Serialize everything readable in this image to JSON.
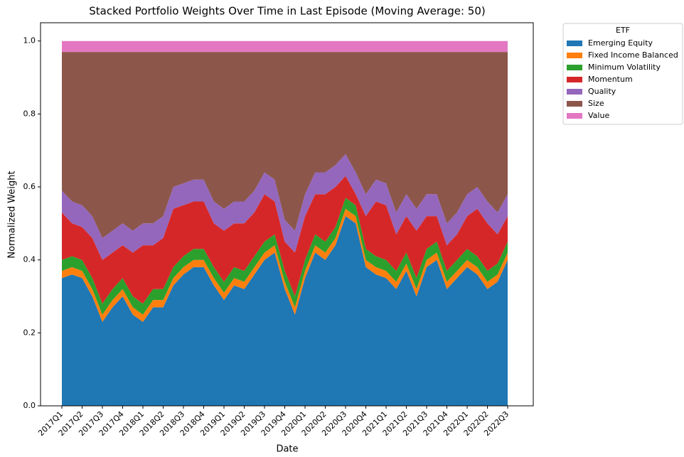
{
  "chart_data": {
    "type": "stacked_area",
    "title": "Stacked Portfolio Weights Over Time in Last Episode (Moving Average: 50)",
    "x_label": "Date",
    "y_label": "Normalized Weight",
    "categories": [
      "2017Q1",
      null,
      "2017Q2",
      null,
      "2017Q3",
      null,
      "2017Q4",
      null,
      "2018Q1",
      null,
      "2018Q2",
      null,
      "2018Q3",
      null,
      "2018Q4",
      null,
      "2019Q1",
      null,
      "2019Q2",
      null,
      "2019Q3",
      null,
      "2019Q4",
      null,
      "2020Q1",
      null,
      "2020Q2",
      null,
      "2020Q3",
      null,
      "2020Q4",
      null,
      "2021Q1",
      null,
      "2021Q2",
      null,
      "2021Q3",
      null,
      "2021Q4",
      null,
      "2022Q1",
      null,
      "2022Q2",
      null,
      "2022Q3"
    ],
    "series": [
      {
        "name": "Emerging Equity",
        "color": "#1f77b4",
        "values": [
          0.35,
          0.36,
          0.35,
          0.3,
          0.23,
          0.27,
          0.3,
          0.25,
          0.23,
          0.27,
          0.27,
          0.33,
          0.36,
          0.38,
          0.38,
          0.33,
          0.29,
          0.33,
          0.32,
          0.36,
          0.4,
          0.42,
          0.32,
          0.25,
          0.35,
          0.42,
          0.4,
          0.44,
          0.52,
          0.5,
          0.38,
          0.36,
          0.35,
          0.32,
          0.37,
          0.3,
          0.38,
          0.4,
          0.32,
          0.35,
          0.38,
          0.36,
          0.32,
          0.34,
          0.4
        ]
      },
      {
        "name": "Fixed Income Balanced",
        "color": "#ff7f0e",
        "values": [
          0.02,
          0.02,
          0.02,
          0.02,
          0.02,
          0.02,
          0.02,
          0.02,
          0.02,
          0.02,
          0.02,
          0.02,
          0.02,
          0.02,
          0.02,
          0.02,
          0.02,
          0.02,
          0.02,
          0.02,
          0.02,
          0.02,
          0.02,
          0.02,
          0.02,
          0.02,
          0.02,
          0.02,
          0.02,
          0.02,
          0.02,
          0.02,
          0.02,
          0.02,
          0.02,
          0.02,
          0.02,
          0.02,
          0.02,
          0.02,
          0.02,
          0.02,
          0.02,
          0.02,
          0.02
        ]
      },
      {
        "name": "Minimum Volatility",
        "color": "#2ca02c",
        "values": [
          0.03,
          0.03,
          0.03,
          0.03,
          0.03,
          0.03,
          0.03,
          0.03,
          0.03,
          0.03,
          0.03,
          0.03,
          0.03,
          0.03,
          0.03,
          0.03,
          0.03,
          0.03,
          0.03,
          0.03,
          0.03,
          0.03,
          0.03,
          0.03,
          0.03,
          0.03,
          0.03,
          0.03,
          0.03,
          0.03,
          0.03,
          0.03,
          0.03,
          0.03,
          0.03,
          0.03,
          0.03,
          0.03,
          0.03,
          0.03,
          0.03,
          0.03,
          0.03,
          0.03,
          0.03
        ]
      },
      {
        "name": "Momentum",
        "color": "#d62728",
        "values": [
          0.13,
          0.09,
          0.09,
          0.11,
          0.12,
          0.1,
          0.09,
          0.12,
          0.16,
          0.12,
          0.14,
          0.16,
          0.14,
          0.13,
          0.13,
          0.12,
          0.14,
          0.12,
          0.13,
          0.12,
          0.13,
          0.09,
          0.08,
          0.12,
          0.12,
          0.11,
          0.13,
          0.11,
          0.06,
          0.03,
          0.09,
          0.15,
          0.15,
          0.1,
          0.1,
          0.13,
          0.09,
          0.07,
          0.07,
          0.07,
          0.09,
          0.13,
          0.13,
          0.08,
          0.07
        ]
      },
      {
        "name": "Quality",
        "color": "#9467bd",
        "values": [
          0.06,
          0.06,
          0.06,
          0.06,
          0.06,
          0.06,
          0.06,
          0.06,
          0.06,
          0.06,
          0.06,
          0.06,
          0.06,
          0.06,
          0.06,
          0.06,
          0.06,
          0.06,
          0.06,
          0.06,
          0.06,
          0.06,
          0.06,
          0.06,
          0.06,
          0.06,
          0.06,
          0.06,
          0.06,
          0.06,
          0.06,
          0.06,
          0.06,
          0.06,
          0.06,
          0.06,
          0.06,
          0.06,
          0.06,
          0.06,
          0.06,
          0.06,
          0.06,
          0.06,
          0.06
        ]
      },
      {
        "name": "Size",
        "color": "#8c564b",
        "values": [
          0.38,
          0.41,
          0.42,
          0.45,
          0.51,
          0.49,
          0.47,
          0.49,
          0.47,
          0.47,
          0.45,
          0.37,
          0.36,
          0.35,
          0.35,
          0.41,
          0.43,
          0.41,
          0.41,
          0.38,
          0.33,
          0.35,
          0.46,
          0.49,
          0.39,
          0.33,
          0.33,
          0.31,
          0.28,
          0.33,
          0.39,
          0.35,
          0.36,
          0.44,
          0.39,
          0.43,
          0.39,
          0.39,
          0.47,
          0.44,
          0.39,
          0.37,
          0.41,
          0.44,
          0.39
        ]
      },
      {
        "name": "Value",
        "color": "#e377c2",
        "values": [
          0.03,
          0.03,
          0.03,
          0.03,
          0.03,
          0.03,
          0.03,
          0.03,
          0.03,
          0.03,
          0.03,
          0.03,
          0.03,
          0.03,
          0.03,
          0.03,
          0.03,
          0.03,
          0.03,
          0.03,
          0.03,
          0.03,
          0.03,
          0.03,
          0.03,
          0.03,
          0.03,
          0.03,
          0.03,
          0.03,
          0.03,
          0.03,
          0.03,
          0.03,
          0.03,
          0.03,
          0.03,
          0.03,
          0.03,
          0.03,
          0.03,
          0.03,
          0.03,
          0.03,
          0.03
        ]
      }
    ],
    "ylim": [
      0,
      1.05
    ],
    "yticks": [
      {
        "value": 0,
        "label": "0.0"
      },
      0.2,
      0.4,
      0.6,
      0.8,
      {
        "value": 1,
        "label": "1.0"
      }
    ],
    "legend_title": "ETF",
    "legend": "outside-upper-right",
    "grid": false
  }
}
